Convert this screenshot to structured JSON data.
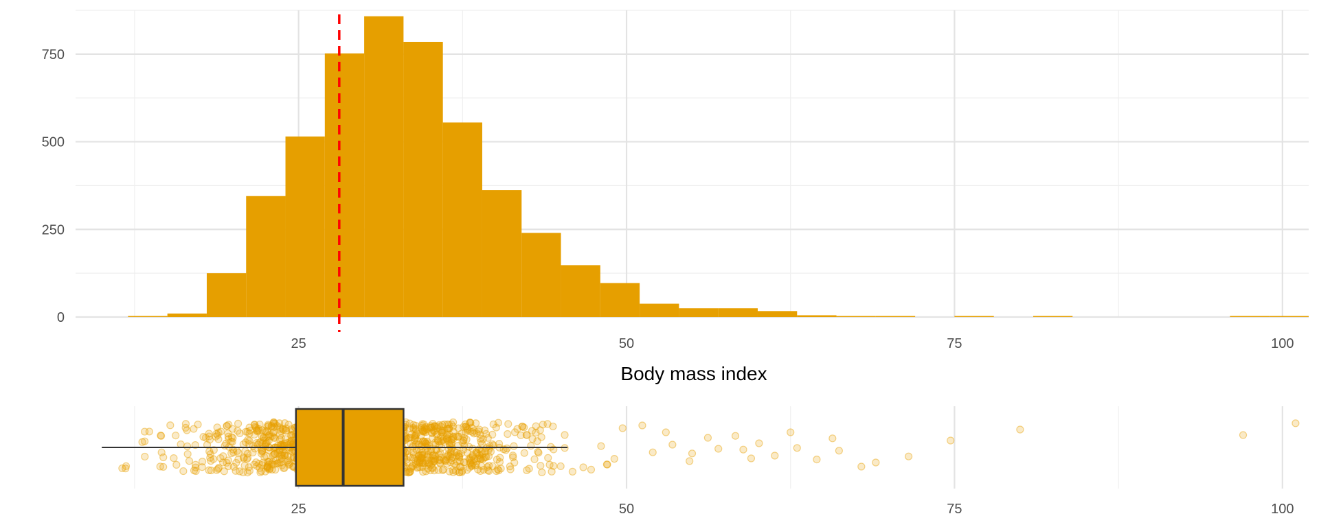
{
  "chart_data": [
    {
      "type": "histogram",
      "xlabel": "Body mass index",
      "ylabel": "",
      "xlim": [
        8,
        102
      ],
      "ylim": [
        0,
        875
      ],
      "x_ticks": [
        25,
        50,
        75,
        100
      ],
      "x_tick_labels": [
        "25",
        "50",
        "75",
        "100"
      ],
      "y_ticks": [
        0,
        250,
        500,
        750
      ],
      "y_tick_labels": [
        "0",
        "250",
        "500",
        "750"
      ],
      "grid": true,
      "bar_color": "#E69F00",
      "bin_width": 3,
      "bins": [
        {
          "x_start": 12,
          "x_end": 15,
          "count": 2
        },
        {
          "x_start": 15,
          "x_end": 18,
          "count": 10
        },
        {
          "x_start": 18,
          "x_end": 21,
          "count": 125
        },
        {
          "x_start": 21,
          "x_end": 24,
          "count": 345
        },
        {
          "x_start": 24,
          "x_end": 27,
          "count": 515
        },
        {
          "x_start": 27,
          "x_end": 30,
          "count": 752
        },
        {
          "x_start": 30,
          "x_end": 33,
          "count": 858
        },
        {
          "x_start": 33,
          "x_end": 36,
          "count": 785
        },
        {
          "x_start": 36,
          "x_end": 39,
          "count": 555
        },
        {
          "x_start": 39,
          "x_end": 42,
          "count": 362
        },
        {
          "x_start": 42,
          "x_end": 45,
          "count": 240
        },
        {
          "x_start": 45,
          "x_end": 48,
          "count": 148
        },
        {
          "x_start": 48,
          "x_end": 51,
          "count": 97
        },
        {
          "x_start": 51,
          "x_end": 54,
          "count": 38
        },
        {
          "x_start": 54,
          "x_end": 57,
          "count": 25
        },
        {
          "x_start": 57,
          "x_end": 60,
          "count": 25
        },
        {
          "x_start": 60,
          "x_end": 63,
          "count": 17
        },
        {
          "x_start": 63,
          "x_end": 66,
          "count": 5
        },
        {
          "x_start": 66,
          "x_end": 69,
          "count": 2
        },
        {
          "x_start": 69,
          "x_end": 72,
          "count": 2
        },
        {
          "x_start": 75,
          "x_end": 78,
          "count": 1
        },
        {
          "x_start": 81,
          "x_end": 84,
          "count": 1
        },
        {
          "x_start": 96,
          "x_end": 99,
          "count": 1
        },
        {
          "x_start": 99,
          "x_end": 102,
          "count": 1
        }
      ],
      "reference_line": {
        "x": 28.1,
        "color": "#FF0000",
        "style": "dashed"
      }
    },
    {
      "type": "boxplot",
      "orientation": "horizontal",
      "xlim": [
        8,
        102
      ],
      "x_ticks": [
        25,
        50,
        75,
        100
      ],
      "x_tick_labels": [
        "25",
        "50",
        "75",
        "100"
      ],
      "grid": true,
      "box_color": "#E69F00",
      "whisker_low": 10,
      "q1": 24.8,
      "median": 28.4,
      "q3": 33.0,
      "whisker_high": 45.5,
      "jitter_points": [
        {
          "x": 52.0,
          "y": 0.18
        },
        {
          "x": 53.5,
          "y": -0.1
        },
        {
          "x": 55.0,
          "y": 0.22
        },
        {
          "x": 56.2,
          "y": -0.35
        },
        {
          "x": 57.0,
          "y": 0.05
        },
        {
          "x": 58.3,
          "y": -0.42
        },
        {
          "x": 59.5,
          "y": 0.4
        },
        {
          "x": 60.1,
          "y": -0.15
        },
        {
          "x": 61.3,
          "y": 0.3
        },
        {
          "x": 62.5,
          "y": -0.55
        },
        {
          "x": 63.0,
          "y": 0.02
        },
        {
          "x": 64.5,
          "y": 0.44
        },
        {
          "x": 65.7,
          "y": -0.33
        },
        {
          "x": 66.2,
          "y": 0.12
        },
        {
          "x": 67.9,
          "y": 0.7
        },
        {
          "x": 69.0,
          "y": 0.55
        },
        {
          "x": 71.5,
          "y": 0.33
        },
        {
          "x": 74.7,
          "y": -0.25
        },
        {
          "x": 80.0,
          "y": -0.65
        },
        {
          "x": 97.0,
          "y": -0.45
        },
        {
          "x": 105.0,
          "y": -0.88
        },
        {
          "x": 53.0,
          "y": -0.55
        },
        {
          "x": 54.8,
          "y": 0.5
        },
        {
          "x": 58.9,
          "y": 0.08
        },
        {
          "x": 48.5,
          "y": 0.62
        },
        {
          "x": 49.7,
          "y": -0.7
        },
        {
          "x": 51.2,
          "y": -0.8
        },
        {
          "x": 47.3,
          "y": 0.81
        }
      ]
    }
  ]
}
